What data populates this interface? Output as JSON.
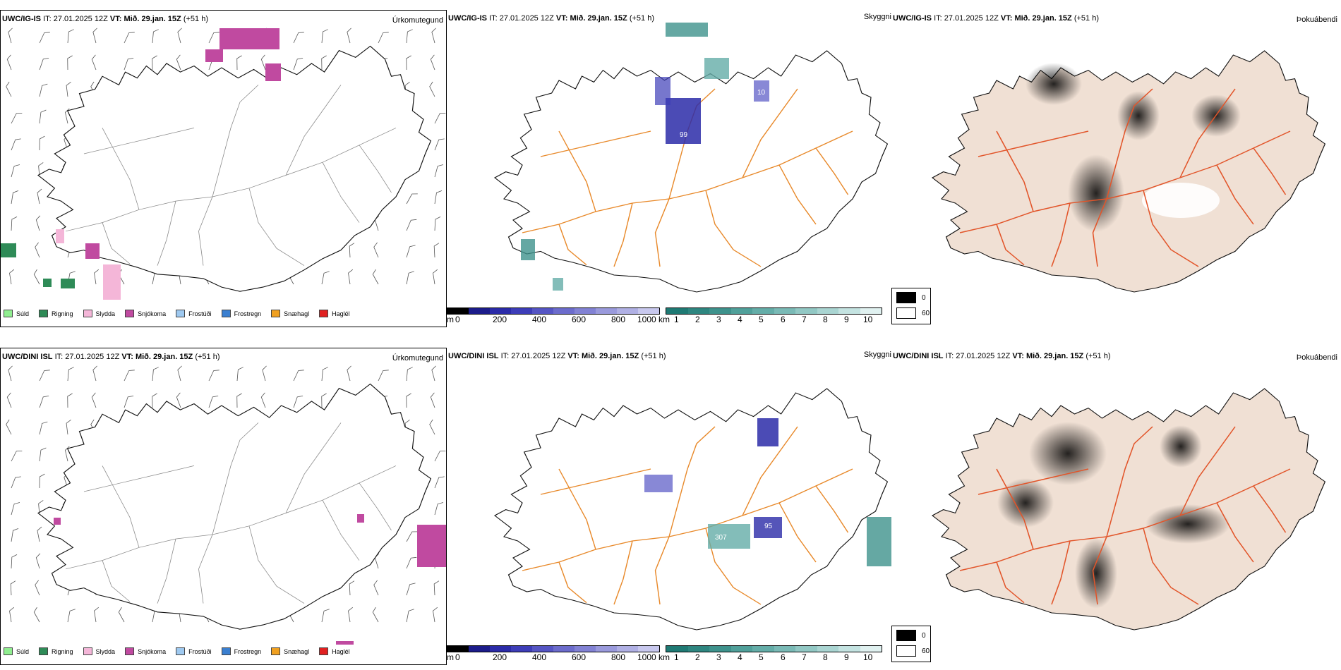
{
  "rows": [
    {
      "model_name": "UWC/IG-IS",
      "it_label": "IT:",
      "it_value": "27.01.2025 12Z",
      "vt_label": "VT:",
      "vt_value": "Mið. 29.jan. 15Z",
      "lead": "(+51 h)",
      "precip_title": "Úrkomutegund",
      "vis_title": "Skyggni",
      "fog_title": "Þokuábendi",
      "vis_labels": [
        "10",
        "99"
      ]
    },
    {
      "model_name": "UWC/DINI ISL",
      "it_label": "IT:",
      "it_value": "27.01.2025 12Z",
      "vt_label": "VT:",
      "vt_value": "Mið. 29.jan. 15Z",
      "lead": "(+51 h)",
      "precip_title": "Úrkomutegund",
      "vis_title": "Skyggni",
      "fog_title": "Þokuábendi",
      "vis_labels": [
        "307",
        "95"
      ]
    }
  ],
  "precip_legend": [
    {
      "label": "Súld",
      "color": "#90ee90"
    },
    {
      "label": "Rigning",
      "color": "#2e8b57"
    },
    {
      "label": "Slydda",
      "color": "#f4b6d8"
    },
    {
      "label": "Snjókoma",
      "color": "#c04aa0"
    },
    {
      "label": "Frostúði",
      "color": "#9ec9f0"
    },
    {
      "label": "Frostregn",
      "color": "#3a7fd0"
    },
    {
      "label": "Snæhagl",
      "color": "#f0a020"
    },
    {
      "label": "Haglél",
      "color": "#e02020"
    }
  ],
  "ceiling_bar": {
    "unit": "m",
    "ticks": [
      "0",
      "200",
      "400",
      "600",
      "800",
      "1000"
    ],
    "colors": [
      "#000000",
      "#1c1c8a",
      "#2b2ba8",
      "#3d3db8",
      "#5555c4",
      "#6c6ccc",
      "#8282d4",
      "#9a9adc",
      "#b0b0e4",
      "#c8c8ee"
    ]
  },
  "vis_bar": {
    "unit": "km",
    "ticks": [
      "1",
      "2",
      "3",
      "4",
      "5",
      "6",
      "7",
      "8",
      "9",
      "10"
    ],
    "colors": [
      "#1f7a74",
      "#2e8680",
      "#3e928c",
      "#50a09a",
      "#64ada8",
      "#7abab6",
      "#92c8c4",
      "#aad5d2",
      "#c4e3e1",
      "#e0f1f0"
    ]
  },
  "fog_legend": [
    {
      "label": "0",
      "color": "#000000"
    },
    {
      "label": "60",
      "color": "#ffffff"
    }
  ],
  "colors": {
    "road": "#e8892a",
    "road_fog": "#e2552a",
    "river_fog": "#8e9ce0",
    "land_fog": "#f0e0d4",
    "coast": "#111111",
    "ceiling_blue": "#2b2ba8",
    "vis_teal": "#3e928c",
    "snow": "#c04aa0",
    "rain": "#2e8b57",
    "sleet": "#f4b6d8"
  }
}
